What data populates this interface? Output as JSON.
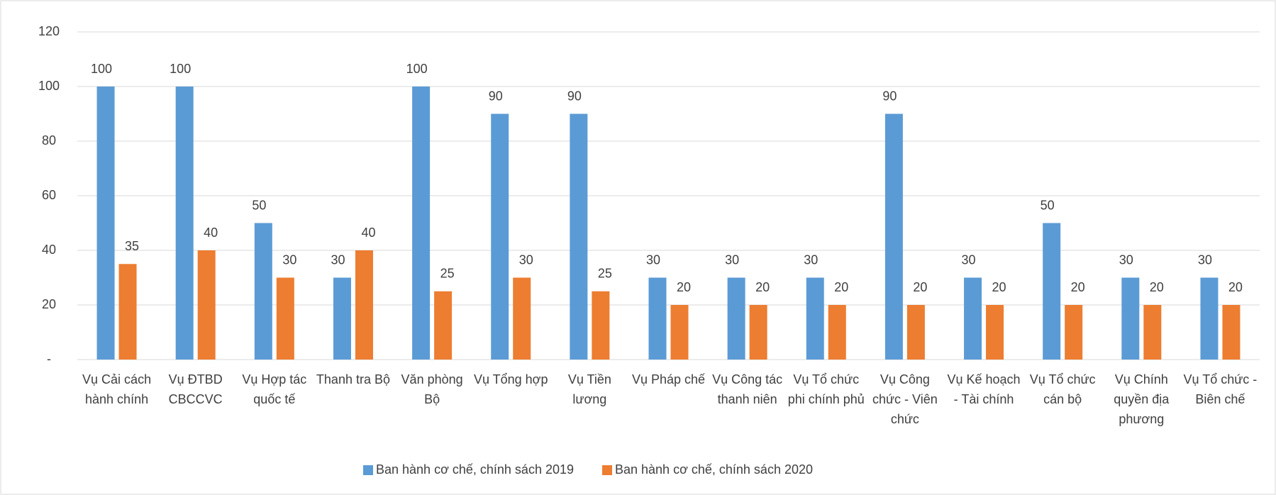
{
  "chart_data": {
    "type": "bar",
    "categories": [
      "Vụ Cải cách hành chính",
      "Vụ ĐTBD CBCCVC",
      "Vụ Hợp tác quốc tế",
      "Thanh tra Bộ",
      "Văn phòng Bộ",
      "Vụ Tổng hợp",
      "Vụ Tiền lương",
      "Vụ Pháp chế",
      "Vụ Công tác thanh niên",
      "Vụ Tổ chức phi chính phủ",
      "Vụ Công chức - Viên chức",
      "Vụ Kế hoạch - Tài chính",
      "Vụ Tổ chức cán bộ",
      "Vụ Chính quyền địa phương",
      "Vụ Tổ chức - Biên chế"
    ],
    "series": [
      {
        "name": "Ban hành cơ chế, chính sách 2019",
        "color": "#5b9bd5",
        "values": [
          100,
          100,
          50,
          30,
          100,
          90,
          90,
          30,
          30,
          30,
          90,
          30,
          50,
          30,
          30
        ]
      },
      {
        "name": "Ban hành cơ chế, chính sách 2020",
        "color": "#ed7d31",
        "values": [
          35,
          40,
          30,
          40,
          25,
          30,
          25,
          20,
          20,
          20,
          20,
          20,
          20,
          20,
          20
        ]
      }
    ],
    "ylim": [
      0,
      120
    ],
    "yticks": [
      {
        "value": 0,
        "label": "-"
      },
      20,
      40,
      60,
      80,
      100,
      120
    ],
    "grid": true,
    "legend": "bottom"
  }
}
